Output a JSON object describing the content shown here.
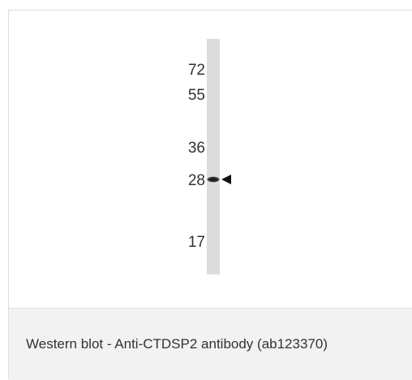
{
  "blot": {
    "markers": [
      "72",
      "55",
      "36",
      "28",
      "17"
    ]
  },
  "caption": "Western blot - Anti-CTDSP2 antibody (ab123370)"
}
